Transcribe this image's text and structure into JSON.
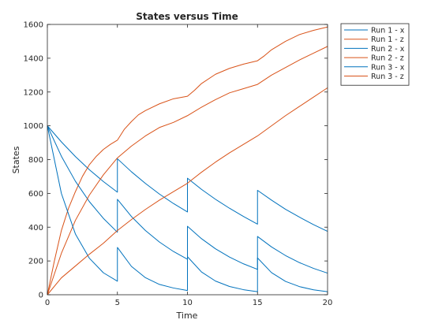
{
  "chart_data": {
    "type": "line",
    "title": "States versus Time",
    "xlabel": "Time",
    "ylabel": "States",
    "xlim": [
      0,
      20
    ],
    "ylim": [
      0,
      1600
    ],
    "xticks": [
      0,
      5,
      10,
      15,
      20
    ],
    "yticks": [
      0,
      200,
      400,
      600,
      800,
      1000,
      1200,
      1400,
      1600
    ],
    "grid": false,
    "legend_position": "outside-top-right",
    "series": [
      {
        "name": "Run 1 - x",
        "color": "#0072BD",
        "x": [
          0,
          1,
          2,
          3,
          4,
          5,
          5,
          6,
          7,
          8,
          9,
          10,
          10,
          11,
          12,
          13,
          14,
          15,
          15,
          16,
          17,
          18,
          19,
          20
        ],
        "y": [
          1000,
          905,
          818,
          740,
          670,
          607,
          805,
          728,
          659,
          596,
          540,
          490,
          690,
          624,
          565,
          512,
          463,
          418,
          618,
          560,
          506,
          459,
          415,
          375
        ]
      },
      {
        "name": "Run 1 - z",
        "color": "#D95319",
        "x": [
          0,
          0.5,
          1,
          1.5,
          2,
          2.5,
          3,
          3.5,
          4,
          4.5,
          5,
          5.5,
          6,
          6.5,
          7,
          8,
          9,
          10,
          10.5,
          11,
          12,
          13,
          14,
          15,
          15.5,
          16,
          17,
          18,
          19,
          20
        ],
        "y": [
          0,
          200,
          380,
          510,
          610,
          700,
          770,
          820,
          860,
          890,
          915,
          980,
          1025,
          1065,
          1090,
          1130,
          1160,
          1175,
          1210,
          1250,
          1305,
          1340,
          1365,
          1385,
          1415,
          1450,
          1500,
          1540,
          1565,
          1585
        ]
      },
      {
        "name": "Run 2 - x",
        "color": "#0072BD",
        "x": [
          0,
          1,
          2,
          3,
          4,
          5,
          5,
          6,
          7,
          8,
          9,
          10,
          10,
          11,
          12,
          13,
          14,
          15,
          15,
          16,
          17,
          18,
          19,
          20
        ],
        "y": [
          1000,
          820,
          672,
          551,
          452,
          370,
          565,
          463,
          380,
          312,
          256,
          210,
          405,
          332,
          272,
          223,
          183,
          150,
          345,
          283,
          232,
          190,
          156,
          128
        ]
      },
      {
        "name": "Run 2 - z",
        "color": "#D95319",
        "x": [
          0,
          1,
          2,
          3,
          4,
          5,
          6,
          7,
          8,
          9,
          10,
          11,
          12,
          13,
          14,
          15,
          16,
          17,
          18,
          19,
          20
        ],
        "y": [
          0,
          245,
          440,
          590,
          710,
          810,
          880,
          940,
          990,
          1020,
          1060,
          1110,
          1155,
          1195,
          1220,
          1245,
          1300,
          1345,
          1390,
          1430,
          1470
        ]
      },
      {
        "name": "Run 3 - x",
        "color": "#0072BD",
        "x": [
          0,
          1,
          2,
          3,
          4,
          5,
          5,
          6,
          7,
          8,
          9,
          10,
          10,
          11,
          12,
          13,
          14,
          15,
          15,
          16,
          17,
          18,
          19,
          20
        ],
        "y": [
          1000,
          600,
          360,
          216,
          130,
          80,
          280,
          168,
          101,
          61,
          40,
          25,
          225,
          135,
          81,
          49,
          30,
          18,
          218,
          131,
          79,
          48,
          29,
          18
        ]
      },
      {
        "name": "Run 3 - z",
        "color": "#D95319",
        "x": [
          0,
          1,
          2,
          3,
          4,
          5,
          6,
          7,
          8,
          9,
          10,
          11,
          12,
          13,
          14,
          15,
          16,
          17,
          18,
          19,
          20
        ],
        "y": [
          0,
          100,
          170,
          240,
          305,
          380,
          445,
          505,
          560,
          610,
          660,
          725,
          785,
          840,
          890,
          940,
          1000,
          1060,
          1115,
          1170,
          1225
        ]
      }
    ]
  }
}
